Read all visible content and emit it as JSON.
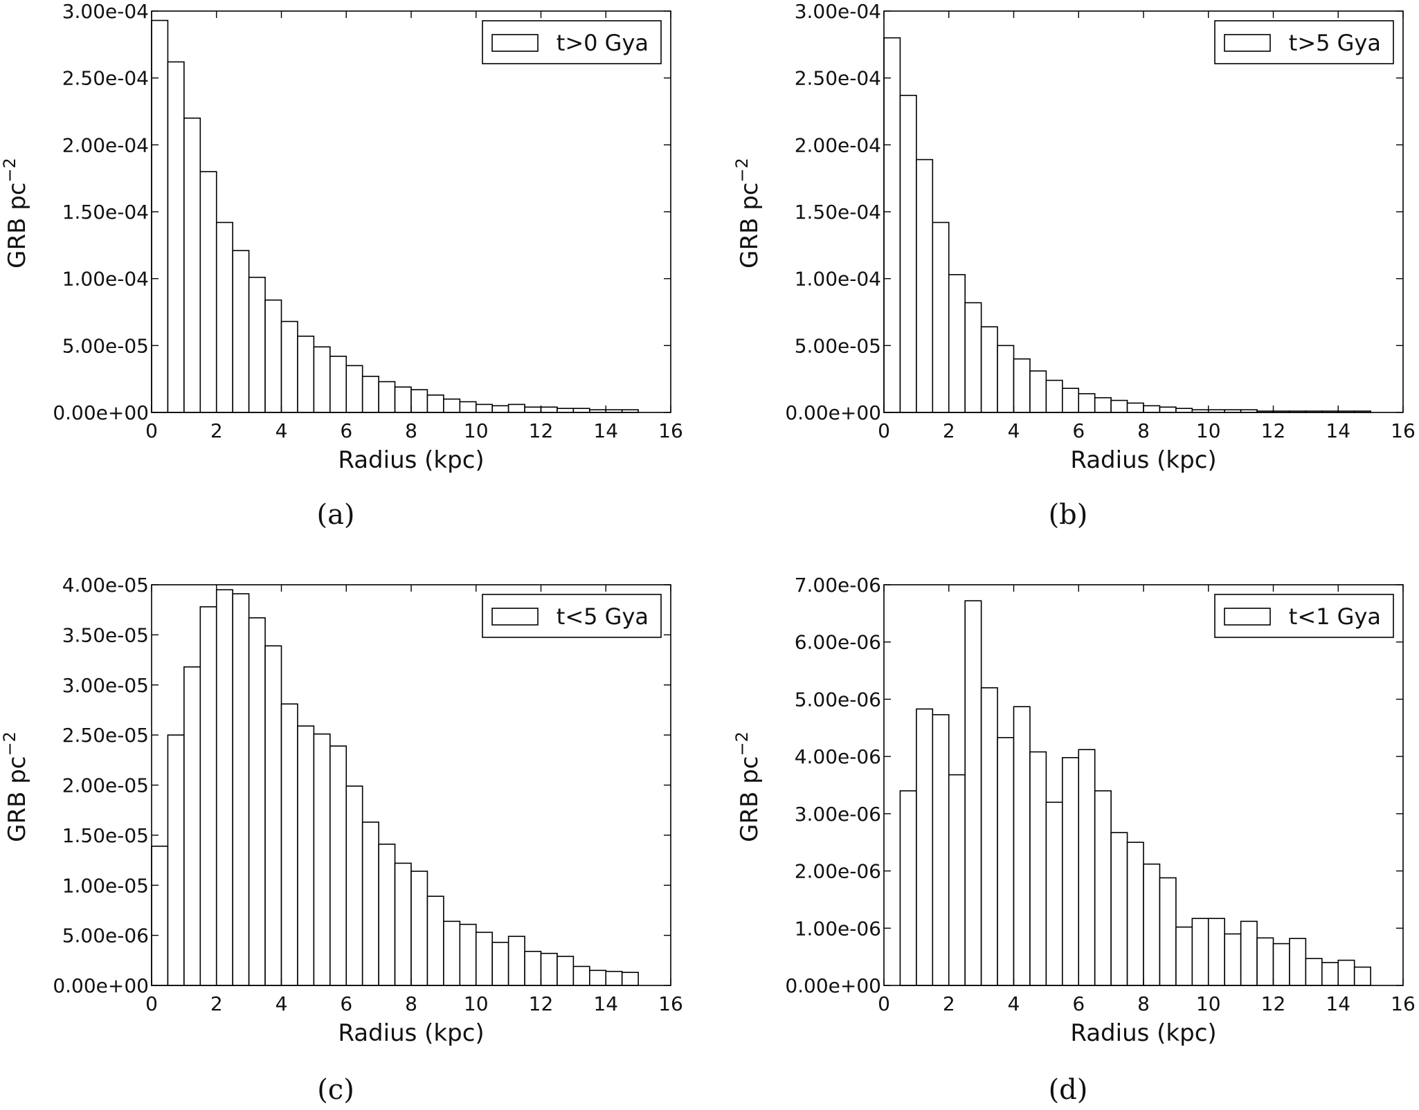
{
  "chart_data": [
    {
      "type": "bar",
      "panel": "a",
      "caption": "(a)",
      "legend": "t>0 Gya",
      "legend_position": "top-right",
      "xlabel": "Radius (kpc)",
      "ylabel_main": "GRB pc",
      "ylabel_sup": "−2",
      "xlim": [
        0,
        16
      ],
      "xticks": [
        0,
        2,
        4,
        6,
        8,
        10,
        12,
        14,
        16
      ],
      "ylim": [
        0,
        0.0003
      ],
      "yticks": [
        "0.00e+00",
        "5.00e-05",
        "1.00e-04",
        "1.50e-04",
        "2.00e-04",
        "2.50e-04",
        "3.00e-04"
      ],
      "bin_edges_start": 0,
      "bin_width": 0.5,
      "values": [
        0.000293,
        0.000262,
        0.00022,
        0.00018,
        0.000142,
        0.000121,
        0.000101,
        8.4e-05,
        6.8e-05,
        5.7e-05,
        4.9e-05,
        4.2e-05,
        3.5e-05,
        2.7e-05,
        2.3e-05,
        1.9e-05,
        1.7e-05,
        1.3e-05,
        1e-05,
        8e-06,
        6e-06,
        5e-06,
        6e-06,
        4e-06,
        4e-06,
        3e-06,
        3e-06,
        2e-06,
        2e-06,
        2e-06
      ]
    },
    {
      "type": "bar",
      "panel": "b",
      "caption": "(b)",
      "legend": "t>5 Gya",
      "legend_position": "top-right",
      "xlabel": "Radius (kpc)",
      "ylabel_main": "GRB pc",
      "ylabel_sup": "−2",
      "xlim": [
        0,
        16
      ],
      "xticks": [
        0,
        2,
        4,
        6,
        8,
        10,
        12,
        14,
        16
      ],
      "ylim": [
        0,
        0.0003
      ],
      "yticks": [
        "0.00e+00",
        "5.00e-05",
        "1.00e-04",
        "1.50e-04",
        "2.00e-04",
        "2.50e-04",
        "3.00e-04"
      ],
      "bin_edges_start": 0,
      "bin_width": 0.5,
      "values": [
        0.00028,
        0.000237,
        0.000189,
        0.000142,
        0.000103,
        8.2e-05,
        6.4e-05,
        5e-05,
        4e-05,
        3.1e-05,
        2.4e-05,
        1.8e-05,
        1.4e-05,
        1.1e-05,
        9e-06,
        7e-06,
        5e-06,
        4e-06,
        3e-06,
        2e-06,
        2e-06,
        2e-06,
        2e-06,
        1e-06,
        1e-06,
        1e-06,
        1e-06,
        1e-06,
        1e-06,
        1e-06
      ]
    },
    {
      "type": "bar",
      "panel": "c",
      "caption": "(c)",
      "legend": "t<5 Gya",
      "legend_position": "top-right",
      "xlabel": "Radius (kpc)",
      "ylabel_main": "GRB pc",
      "ylabel_sup": "−2",
      "xlim": [
        0,
        16
      ],
      "xticks": [
        0,
        2,
        4,
        6,
        8,
        10,
        12,
        14,
        16
      ],
      "ylim": [
        0,
        4e-05
      ],
      "yticks": [
        "0.00e+00",
        "5.00e-06",
        "1.00e-05",
        "1.50e-05",
        "2.00e-05",
        "2.50e-05",
        "3.00e-05",
        "3.50e-05",
        "4.00e-05"
      ],
      "bin_edges_start": 0,
      "bin_width": 0.5,
      "values": [
        1.39e-05,
        2.5e-05,
        3.18e-05,
        3.78e-05,
        3.95e-05,
        3.91e-05,
        3.67e-05,
        3.39e-05,
        2.81e-05,
        2.59e-05,
        2.51e-05,
        2.39e-05,
        1.99e-05,
        1.63e-05,
        1.41e-05,
        1.22e-05,
        1.14e-05,
        8.9e-06,
        6.4e-06,
        6.1e-06,
        5.3e-06,
        4.3e-06,
        4.9e-06,
        3.4e-06,
        3.2e-06,
        2.9e-06,
        1.9e-06,
        1.5e-06,
        1.4e-06,
        1.3e-06
      ]
    },
    {
      "type": "bar",
      "panel": "d",
      "caption": "(d)",
      "legend": "t<1 Gya",
      "legend_position": "top-right",
      "xlabel": "Radius (kpc)",
      "ylabel_main": "GRB pc",
      "ylabel_sup": "−2",
      "xlim": [
        0,
        16
      ],
      "xticks": [
        0,
        2,
        4,
        6,
        8,
        10,
        12,
        14,
        16
      ],
      "ylim": [
        0,
        7e-06
      ],
      "yticks": [
        "0.00e+00",
        "1.00e-06",
        "2.00e-06",
        "3.00e-06",
        "4.00e-06",
        "5.00e-06",
        "6.00e-06",
        "7.00e-06"
      ],
      "bin_edges_start": 0,
      "bin_width": 0.5,
      "values": [
        0.0,
        3.4e-06,
        4.83e-06,
        4.73e-06,
        3.68e-06,
        6.72e-06,
        5.2e-06,
        4.33e-06,
        4.87e-06,
        4.08e-06,
        3.2e-06,
        3.98e-06,
        4.12e-06,
        3.4e-06,
        2.67e-06,
        2.5e-06,
        2.12e-06,
        1.88e-06,
        1.02e-06,
        1.17e-06,
        1.17e-06,
        9e-07,
        1.12e-06,
        8.3e-07,
        7.3e-07,
        8.2e-07,
        4.7e-07,
        4e-07,
        4.4e-07,
        3.2e-07
      ]
    }
  ]
}
